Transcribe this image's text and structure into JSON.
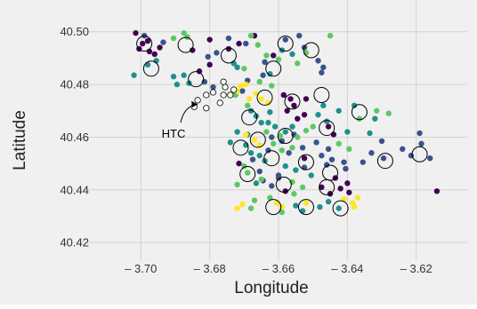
{
  "chart_data": {
    "type": "scatter",
    "title": "",
    "xlabel": "Longitude",
    "ylabel": "Latitude",
    "xlim": [
      -3.713,
      -3.607
    ],
    "ylim": [
      40.415,
      40.508
    ],
    "grid": true,
    "xticks": [
      -3.7,
      -3.68,
      -3.66,
      -3.64,
      -3.62
    ],
    "xtick_labels": [
      "– 3.70",
      "– 3.68",
      "– 3.66",
      "– 3.64",
      "– 3.62"
    ],
    "yticks": [
      40.42,
      40.44,
      40.46,
      40.48,
      40.5
    ],
    "ytick_labels": [
      "40.42",
      "40.44",
      "40.46",
      "40.48",
      "40.50"
    ],
    "annotations": [
      {
        "text": "HTC",
        "x": -3.6905,
        "y": 40.4615,
        "arrow_to": [
          -3.6835,
          40.4725
        ]
      }
    ],
    "colors": {
      "dark_purple": "#440154",
      "blue": "#3b528b",
      "teal": "#21908c",
      "green": "#5dc863",
      "yellow": "#fde725",
      "circle_outline": "#000000",
      "grid": "#d2d2d2",
      "background": "#f0f0f0"
    },
    "series": [
      {
        "color": "dark_purple",
        "points": [
          [
            -3.7015,
            40.4995
          ],
          [
            -3.6995,
            40.4955
          ],
          [
            -3.7005,
            40.4935
          ],
          [
            -3.6975,
            40.4925
          ],
          [
            -3.696,
            40.4915
          ],
          [
            -3.6945,
            40.494
          ],
          [
            -3.698,
            40.4965
          ],
          [
            -3.685,
            40.493
          ],
          [
            -3.68,
            40.497
          ],
          [
            -3.6715,
            40.4955
          ],
          [
            -3.6745,
            40.4935
          ],
          [
            -3.667,
            40.4985
          ],
          [
            -3.6615,
            40.491
          ],
          [
            -3.68,
            40.4875
          ],
          [
            -3.683,
            40.485
          ],
          [
            -3.6585,
            40.476
          ],
          [
            -3.6565,
            40.4745
          ],
          [
            -3.6555,
            40.472
          ],
          [
            -3.652,
            40.4745
          ],
          [
            -3.6575,
            40.47
          ],
          [
            -3.6525,
            40.4685
          ],
          [
            -3.6455,
            40.464
          ],
          [
            -3.6545,
            40.467
          ],
          [
            -3.644,
            40.461
          ],
          [
            -3.645,
            40.4385
          ],
          [
            -3.642,
            40.4405
          ],
          [
            -3.64,
            40.4425
          ],
          [
            -3.6435,
            40.4445
          ],
          [
            -3.6475,
            40.441
          ],
          [
            -3.6395,
            40.439
          ],
          [
            -3.614,
            40.4395
          ],
          [
            -3.658,
            40.4395
          ],
          [
            -3.6715,
            40.45
          ],
          [
            -3.6525,
            40.452
          ]
        ]
      },
      {
        "color": "blue",
        "points": [
          [
            -3.699,
            40.4985
          ],
          [
            -3.6935,
            40.496
          ],
          [
            -3.6805,
            40.4905
          ],
          [
            -3.678,
            40.492
          ],
          [
            -3.6745,
            40.4975
          ],
          [
            -3.6695,
            40.4955
          ],
          [
            -3.658,
            40.497
          ],
          [
            -3.6525,
            40.494
          ],
          [
            -3.654,
            40.4985
          ],
          [
            -3.6485,
            40.489
          ],
          [
            -3.647,
            40.4865
          ],
          [
            -3.6475,
            40.4845
          ],
          [
            -3.6815,
            40.481
          ],
          [
            -3.679,
            40.479
          ],
          [
            -3.664,
            40.4885
          ],
          [
            -3.6645,
            40.4835
          ],
          [
            -3.669,
            40.4815
          ],
          [
            -3.6705,
            40.4775
          ],
          [
            -3.649,
            40.458
          ],
          [
            -3.6475,
            40.453
          ],
          [
            -3.653,
            40.456
          ],
          [
            -3.6555,
            40.461
          ],
          [
            -3.6455,
            40.4555
          ],
          [
            -3.6445,
            40.4515
          ],
          [
            -3.641,
            40.4505
          ],
          [
            -3.6405,
            40.448
          ],
          [
            -3.646,
            40.4495
          ],
          [
            -3.6525,
            40.4485
          ],
          [
            -3.66,
            40.4445
          ],
          [
            -3.662,
            40.4415
          ],
          [
            -3.6645,
            40.4435
          ],
          [
            -3.66,
            40.4455
          ],
          [
            -3.6675,
            40.4515
          ],
          [
            -3.6655,
            40.447
          ],
          [
            -3.633,
            40.454
          ],
          [
            -3.6355,
            40.4505
          ],
          [
            -3.6295,
            40.452
          ],
          [
            -3.6185,
            40.4575
          ],
          [
            -3.616,
            40.452
          ],
          [
            -3.6215,
            40.453
          ],
          [
            -3.624,
            40.4555
          ],
          [
            -3.619,
            40.4615
          ],
          [
            -3.63,
            40.4585
          ],
          [
            -3.659,
            40.4585
          ],
          [
            -3.662,
            40.46
          ],
          [
            -3.657,
            40.454
          ],
          [
            -3.663,
            40.455
          ]
        ]
      },
      {
        "color": "teal",
        "points": [
          [
            -3.702,
            40.4835
          ],
          [
            -3.698,
            40.4875
          ],
          [
            -3.6955,
            40.489
          ],
          [
            -3.6875,
            40.4835
          ],
          [
            -3.686,
            40.4805
          ],
          [
            -3.6895,
            40.48
          ],
          [
            -3.6905,
            40.483
          ],
          [
            -3.673,
            40.488
          ],
          [
            -3.672,
            40.4865
          ],
          [
            -3.6625,
            40.484
          ],
          [
            -3.659,
            40.493
          ],
          [
            -3.656,
            40.4915
          ],
          [
            -3.668,
            40.47
          ],
          [
            -3.6665,
            40.468
          ],
          [
            -3.665,
            40.4655
          ],
          [
            -3.6625,
            40.4695
          ],
          [
            -3.663,
            40.4655
          ],
          [
            -3.661,
            40.464
          ],
          [
            -3.658,
            40.462
          ],
          [
            -3.656,
            40.464
          ],
          [
            -3.6425,
            40.47
          ],
          [
            -3.647,
            40.472
          ],
          [
            -3.6485,
            40.4685
          ],
          [
            -3.646,
            40.466
          ],
          [
            -3.6695,
            40.457
          ],
          [
            -3.668,
            40.454
          ],
          [
            -3.6655,
            40.453
          ],
          [
            -3.664,
            40.451
          ],
          [
            -3.658,
            40.449
          ],
          [
            -3.655,
            40.4475
          ],
          [
            -3.6505,
            40.4455
          ],
          [
            -3.6665,
            40.4425
          ],
          [
            -3.655,
            40.434
          ],
          [
            -3.653,
            40.432
          ],
          [
            -3.648,
            40.4335
          ],
          [
            -3.6455,
            40.4355
          ],
          [
            -3.6425,
            40.433
          ],
          [
            -3.6335,
            40.4615
          ],
          [
            -3.64,
            40.462
          ],
          [
            -3.632,
            40.467
          ],
          [
            -3.638,
            40.472
          ],
          [
            -3.672,
            40.462
          ],
          [
            -3.669,
            40.461
          ],
          [
            -3.674,
            40.458
          ]
        ]
      },
      {
        "color": "green",
        "points": [
          [
            -3.6875,
            40.4995
          ],
          [
            -3.6865,
            40.498
          ],
          [
            -3.6905,
            40.4975
          ],
          [
            -3.668,
            40.4985
          ],
          [
            -3.666,
            40.495
          ],
          [
            -3.6635,
            40.491
          ],
          [
            -3.66,
            40.4895
          ],
          [
            -3.652,
            40.492
          ],
          [
            -3.6545,
            40.488
          ],
          [
            -3.645,
            40.4985
          ],
          [
            -3.67,
            40.486
          ],
          [
            -3.6655,
            40.481
          ],
          [
            -3.662,
            40.4795
          ],
          [
            -3.6725,
            40.476
          ],
          [
            -3.669,
            40.472
          ],
          [
            -3.652,
            40.4625
          ],
          [
            -3.6545,
            40.46
          ],
          [
            -3.656,
            40.456
          ],
          [
            -3.65,
            40.464
          ],
          [
            -3.6615,
            40.4575
          ],
          [
            -3.659,
            40.455
          ],
          [
            -3.67,
            40.449
          ],
          [
            -3.669,
            40.4465
          ],
          [
            -3.665,
            40.444
          ],
          [
            -3.656,
            40.443
          ],
          [
            -3.653,
            40.441
          ],
          [
            -3.6555,
            40.4385
          ],
          [
            -3.6625,
            40.437
          ],
          [
            -3.667,
            40.436
          ],
          [
            -3.659,
            40.4315
          ],
          [
            -3.668,
            40.433
          ],
          [
            -3.6365,
            40.467
          ],
          [
            -3.6315,
            40.47
          ],
          [
            -3.628,
            40.469
          ],
          [
            -3.6395,
            40.4555
          ],
          [
            -3.6425,
            40.4575
          ],
          [
            -3.6595,
            40.4605
          ],
          [
            -3.6635,
            40.462
          ],
          [
            -3.672,
            40.442
          ]
        ]
      },
      {
        "color": "yellow",
        "points": [
          [
            -3.672,
            40.4775
          ],
          [
            -3.6695,
            40.48
          ],
          [
            -3.6665,
            40.4765
          ],
          [
            -3.665,
            40.4745
          ],
          [
            -3.663,
            40.473
          ],
          [
            -3.6685,
            40.4745
          ],
          [
            -3.671,
            40.4795
          ],
          [
            -3.667,
            40.459
          ],
          [
            -3.6655,
            40.457
          ],
          [
            -3.6695,
            40.461
          ],
          [
            -3.641,
            40.4365
          ],
          [
            -3.6385,
            40.435
          ],
          [
            -3.637,
            40.437
          ],
          [
            -3.638,
            40.4335
          ],
          [
            -3.652,
            40.435
          ],
          [
            -3.659,
            40.4335
          ],
          [
            -3.6605,
            40.435
          ],
          [
            -3.672,
            40.433
          ],
          [
            -3.6705,
            40.4345
          ]
        ]
      }
    ],
    "cluster_circles": [
      [
        -3.699,
        40.4955
      ],
      [
        -3.697,
        40.486
      ],
      [
        -3.687,
        40.495
      ],
      [
        -3.6745,
        40.491
      ],
      [
        -3.658,
        40.4955
      ],
      [
        -3.6615,
        40.486
      ],
      [
        -3.6505,
        40.493
      ],
      [
        -3.684,
        40.482
      ],
      [
        -3.664,
        40.475
      ],
      [
        -3.656,
        40.4735
      ],
      [
        -3.6475,
        40.476
      ],
      [
        -3.6365,
        40.4695
      ],
      [
        -3.6685,
        40.4675
      ],
      [
        -3.646,
        40.4635
      ],
      [
        -3.658,
        40.4605
      ],
      [
        -3.666,
        40.459
      ],
      [
        -3.671,
        40.456
      ],
      [
        -3.662,
        40.452
      ],
      [
        -3.652,
        40.4505
      ],
      [
        -3.645,
        40.4465
      ],
      [
        -3.629,
        40.451
      ],
      [
        -3.619,
        40.4535
      ],
      [
        -3.669,
        40.446
      ],
      [
        -3.6585,
        40.442
      ],
      [
        -3.646,
        40.441
      ],
      [
        -3.6615,
        40.4335
      ],
      [
        -3.652,
        40.4335
      ],
      [
        -3.642,
        40.433
      ]
    ],
    "htc_points": [
      [
        -3.6835,
        40.474
      ],
      [
        -3.681,
        40.476
      ],
      [
        -3.679,
        40.477
      ],
      [
        -3.676,
        40.476
      ],
      [
        -3.6755,
        40.479
      ],
      [
        -3.676,
        40.481
      ],
      [
        -3.674,
        40.476
      ],
      [
        -3.673,
        40.478
      ],
      [
        -3.677,
        40.473
      ],
      [
        -3.681,
        40.471
      ],
      [
        -3.6845,
        40.4715
      ]
    ]
  }
}
